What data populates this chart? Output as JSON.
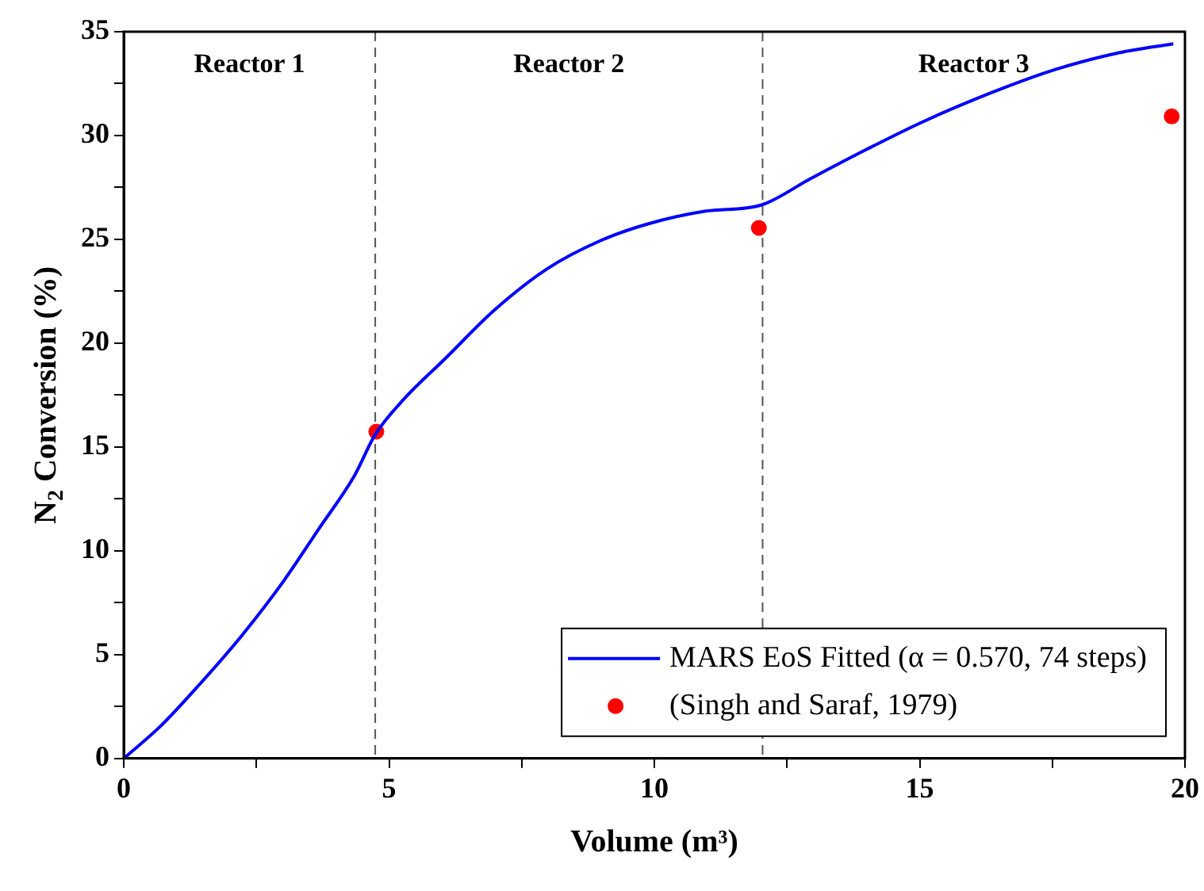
{
  "chart_data": {
    "type": "line",
    "xlabel": "Volume (m³)",
    "ylabel": "N$_{2}$ Conversion (%)",
    "xlim": [
      0,
      20
    ],
    "ylim": [
      0,
      35
    ],
    "xticks": [
      0,
      {
        "value": 2.5,
        "label": null
      },
      5,
      {
        "value": 7.5,
        "label": null
      },
      10,
      {
        "value": 12.5,
        "label": null
      },
      15,
      {
        "value": 17.5,
        "label": null
      },
      20
    ],
    "yticks": [
      0,
      {
        "value": 2.5,
        "label": null
      },
      5,
      {
        "value": 7.5,
        "label": null
      },
      10,
      {
        "value": 12.5,
        "label": null
      },
      15,
      {
        "value": 17.5,
        "label": null
      },
      20,
      {
        "value": 22.5,
        "label": null
      },
      25,
      {
        "value": 27.5,
        "label": null
      },
      30,
      {
        "value": 32.5,
        "label": null
      },
      35
    ],
    "grid": false,
    "legend": "bottom right",
    "series": [
      {
        "name": "MARS EoS Fitted (α = 0.570, 74 steps)",
        "color": "#0000ff",
        "marker": "none",
        "line_style": "solid",
        "x": [
          0,
          0.7,
          1.43,
          2.22,
          3.02,
          3.68,
          4.34,
          4.74,
          5.26,
          6.06,
          6.98,
          7.98,
          8.97,
          9.89,
          10.95,
          12.01,
          12.94,
          13.99,
          15.05,
          16.38,
          17.57,
          18.76,
          19.78
        ],
        "values": [
          0,
          1.57,
          3.57,
          5.9,
          8.57,
          11.07,
          13.58,
          15.6,
          17.25,
          19.26,
          21.58,
          23.58,
          24.92,
          25.75,
          26.35,
          26.65,
          27.92,
          29.32,
          30.65,
          32.09,
          33.19,
          33.99,
          34.42
        ]
      },
      {
        "name": "(Singh and Saraf, 1979)",
        "type": "scatter",
        "color": "#ff0000",
        "marker": "circle",
        "x": [
          4.76,
          11.97,
          19.75
        ],
        "values": [
          15.74,
          25.55,
          30.92
        ]
      }
    ],
    "ref_lines": [
      {
        "axis": "x",
        "value": 4.74,
        "color": "#555555",
        "line_style": "dashed"
      },
      {
        "axis": "x",
        "value": 12.04,
        "color": "#555555",
        "line_style": "dashed"
      }
    ],
    "annotations": [
      "Reactor 1",
      "Reactor 2",
      "Reactor 3"
    ]
  }
}
